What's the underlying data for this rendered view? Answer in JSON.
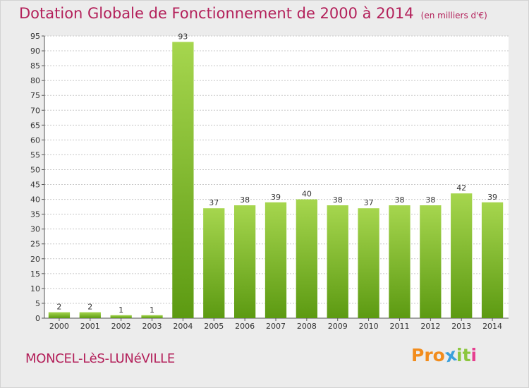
{
  "header": {
    "title": "Dotation Globale de Fonctionnement de 2000 à 2014",
    "unit": "(en milliers d'€)"
  },
  "footer": {
    "commune": "MONCEL-LèS-LUNéVILLE",
    "logo": [
      "P",
      "r",
      "o",
      "x",
      "i",
      "t",
      "i"
    ]
  },
  "colors": {
    "title": "#b3205a",
    "bar_light": "#a6d64e",
    "bar_dark": "#5c9a12",
    "logo": [
      "#f28c1c",
      "#f28c1c",
      "#f28c1c",
      "#3aa0dc",
      "#8cc63e",
      "#8cc63e",
      "#e63f8f"
    ]
  },
  "chart_data": {
    "type": "bar",
    "title": "Dotation Globale de Fonctionnement de 2000 à 2014",
    "subtitle": "(en milliers d'€)",
    "xlabel": "",
    "ylabel": "",
    "ylim": [
      0,
      95
    ],
    "yticks": [
      0,
      5,
      10,
      15,
      20,
      25,
      30,
      35,
      40,
      45,
      50,
      55,
      60,
      65,
      70,
      75,
      80,
      85,
      90,
      95
    ],
    "grid": true,
    "categories": [
      "2000",
      "2001",
      "2002",
      "2003",
      "2004",
      "2005",
      "2006",
      "2007",
      "2008",
      "2009",
      "2010",
      "2011",
      "2012",
      "2013",
      "2014"
    ],
    "values": [
      2,
      2,
      1,
      1,
      93,
      37,
      38,
      39,
      40,
      38,
      37,
      38,
      38,
      42,
      39
    ]
  }
}
